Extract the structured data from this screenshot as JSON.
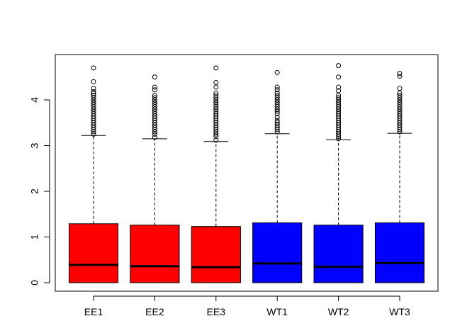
{
  "chart_data": {
    "type": "boxplot",
    "title": "",
    "xlabel": "",
    "ylabel": "",
    "ylim": [
      -0.2,
      4.85
    ],
    "yticks": [
      0,
      1,
      2,
      3,
      4
    ],
    "grid": false,
    "categories": [
      "EE1",
      "EE2",
      "EE3",
      "WT1",
      "WT2",
      "WT3"
    ],
    "colors": [
      "#ff0000",
      "#ff0000",
      "#ff0000",
      "#0000ff",
      "#0000ff",
      "#0000ff"
    ],
    "boxes": [
      {
        "name": "EE1",
        "min": 0,
        "q1": 0,
        "median": 0.39,
        "q3": 1.29,
        "whisker_high": 3.22,
        "outliers": [
          3.25,
          3.3,
          3.35,
          3.4,
          3.45,
          3.5,
          3.55,
          3.6,
          3.65,
          3.7,
          3.75,
          3.8,
          3.85,
          3.9,
          3.95,
          4.0,
          4.05,
          4.1,
          4.14,
          4.18,
          4.25,
          4.4,
          4.7
        ]
      },
      {
        "name": "EE2",
        "min": 0,
        "q1": 0,
        "median": 0.36,
        "q3": 1.26,
        "whisker_high": 3.15,
        "outliers": [
          3.18,
          3.25,
          3.3,
          3.35,
          3.4,
          3.45,
          3.5,
          3.55,
          3.6,
          3.65,
          3.7,
          3.75,
          3.8,
          3.85,
          3.9,
          3.95,
          4.0,
          4.05,
          4.1,
          4.22,
          4.28,
          4.5
        ]
      },
      {
        "name": "EE3",
        "min": 0,
        "q1": 0,
        "median": 0.34,
        "q3": 1.23,
        "whisker_high": 3.09,
        "outliers": [
          3.12,
          3.2,
          3.25,
          3.3,
          3.35,
          3.4,
          3.45,
          3.5,
          3.55,
          3.6,
          3.65,
          3.7,
          3.75,
          3.8,
          3.85,
          3.9,
          3.95,
          4.0,
          4.05,
          4.1,
          4.15,
          4.28,
          4.38,
          4.7
        ]
      },
      {
        "name": "WT1",
        "min": 0,
        "q1": 0,
        "median": 0.42,
        "q3": 1.31,
        "whisker_high": 3.26,
        "outliers": [
          3.3,
          3.35,
          3.4,
          3.45,
          3.5,
          3.55,
          3.62,
          3.7,
          3.75,
          3.8,
          3.85,
          3.9,
          3.95,
          4.0,
          4.05,
          4.1,
          4.15,
          4.22,
          4.28,
          4.6
        ]
      },
      {
        "name": "WT2",
        "min": 0,
        "q1": 0,
        "median": 0.35,
        "q3": 1.26,
        "whisker_high": 3.13,
        "outliers": [
          3.15,
          3.2,
          3.25,
          3.3,
          3.35,
          3.4,
          3.45,
          3.5,
          3.55,
          3.6,
          3.65,
          3.7,
          3.75,
          3.8,
          3.85,
          3.9,
          3.95,
          4.0,
          4.05,
          4.1,
          4.2,
          4.28,
          4.5,
          4.75
        ]
      },
      {
        "name": "WT3",
        "min": 0,
        "q1": 0,
        "median": 0.43,
        "q3": 1.31,
        "whisker_high": 3.27,
        "outliers": [
          3.3,
          3.35,
          3.4,
          3.45,
          3.5,
          3.55,
          3.6,
          3.65,
          3.7,
          3.75,
          3.8,
          3.85,
          3.9,
          3.95,
          4.0,
          4.05,
          4.1,
          4.15,
          4.25,
          4.52,
          4.58
        ]
      }
    ]
  }
}
